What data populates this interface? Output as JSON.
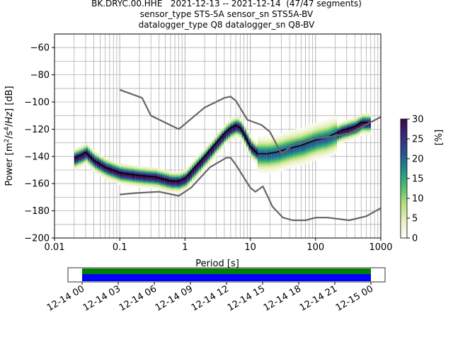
{
  "title_lines": [
    "BK.DRYC.00.HHE   2021-12-13 -- 2021-12-14  (47/47 segments)",
    "sensor_type STS-5A sensor_sn STS5A-BV",
    "datalogger_type Q8 datalogger_sn Q8-BV"
  ],
  "colorbar": {
    "label": "[%]",
    "ticks": [
      "0",
      "5",
      "10",
      "15",
      "20",
      "25",
      "30"
    ],
    "min": 0,
    "max": 30,
    "colormap": [
      "#ffffff",
      "#e8f0c0",
      "#b8e07a",
      "#4fbf6f",
      "#1f8f8a",
      "#2a4f8f",
      "#3a2a7a",
      "#3a0a4a"
    ]
  },
  "colors": {
    "mean_line": "#000000",
    "noise_model": "#666666",
    "grid": "#b0b0b0",
    "timeline_top": "#008000",
    "timeline_bottom": "#0000ff"
  },
  "chart_data": [
    {
      "type": "heatmap",
      "title": "",
      "xlabel": "Period [s]",
      "ylabel": "Power [m²/s⁴/Hz] [dB]",
      "x_scale": "log",
      "xlim": [
        0.01,
        1000
      ],
      "ylim": [
        -200,
        -50
      ],
      "x_ticks": [
        0.01,
        0.1,
        1,
        10,
        100,
        1000
      ],
      "x_tick_labels": [
        "0.01",
        "0.1",
        "1",
        "10",
        "100",
        "1000"
      ],
      "y_ticks": [
        -200,
        -180,
        -160,
        -140,
        -120,
        -100,
        -80,
        -60
      ],
      "y_tick_labels": [
        "−200",
        "−180",
        "−160",
        "−140",
        "−120",
        "−100",
        "−80",
        "−60"
      ],
      "grid": true,
      "series": [
        {
          "role": "mean",
          "x": [
            0.02,
            0.025,
            0.03,
            0.04,
            0.06,
            0.1,
            0.2,
            0.35,
            0.6,
            0.8,
            1.0,
            1.3,
            2.0,
            3.0,
            4.0,
            5.0,
            6.0,
            7.0,
            8.0,
            10.0,
            13.0,
            18.0,
            25.0,
            40.0,
            60.0,
            100.0,
            150.0,
            250.0,
            400.0,
            500.0,
            700.0
          ],
          "y": [
            -141,
            -139,
            -137,
            -143,
            -148,
            -152,
            -154,
            -155,
            -158,
            -158,
            -156,
            -150,
            -140,
            -130,
            -123,
            -119,
            -117,
            -119,
            -124,
            -133,
            -138,
            -138,
            -137,
            -134,
            -132,
            -128,
            -126,
            -121,
            -118,
            -115,
            -115
          ]
        },
        {
          "role": "noise_model_upper",
          "x": [
            0.1,
            0.22,
            0.3,
            0.8,
            2.0,
            4.0,
            5.0,
            6.0,
            9.0,
            15.0,
            20.0,
            30.0,
            50.0,
            100.0,
            200.0,
            330.0,
            1000.0
          ],
          "y": [
            -91,
            -97,
            -110,
            -120,
            -104,
            -97,
            -96,
            -99,
            -113,
            -117,
            -122,
            -138,
            -130,
            -127,
            -125,
            -123,
            -111
          ]
        },
        {
          "role": "noise_model_lower",
          "x": [
            0.1,
            0.17,
            0.4,
            0.8,
            1.24,
            2.4,
            4.3,
            5.0,
            6.0,
            10.0,
            12.0,
            15.6,
            21.9,
            31.6,
            45.0,
            70.0,
            101.0,
            154.0,
            328.0,
            600.0,
            1000.0
          ],
          "y": [
            -168,
            -167,
            -166,
            -169,
            -163,
            -148,
            -141,
            -141,
            -146,
            -163,
            -166,
            -162,
            -177,
            -185,
            -187,
            -187,
            -185,
            -185,
            -187,
            -184,
            -178
          ]
        }
      ]
    },
    {
      "type": "table",
      "title": "",
      "xlim": [
        "12-14 00",
        "12-15 00"
      ],
      "x_tick_labels": [
        "12-14 00",
        "12-14 03",
        "12-14 06",
        "12-14 09",
        "12-14 12",
        "12-14 15",
        "12-14 18",
        "12-14 21",
        "12-15 00"
      ],
      "coverage_start_hours": 0,
      "coverage_end_hours": 24
    }
  ]
}
